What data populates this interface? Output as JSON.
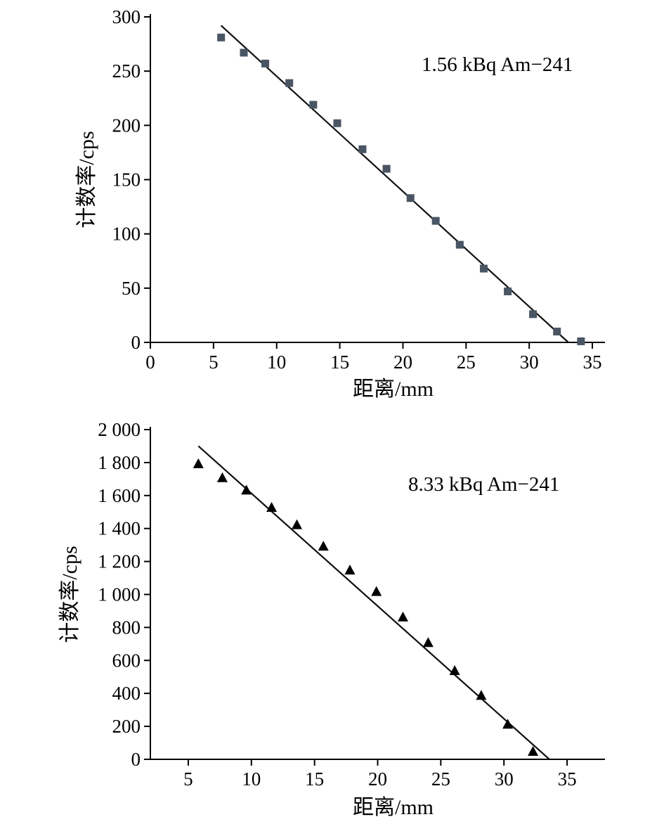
{
  "chart_data": [
    {
      "type": "scatter",
      "annotation": "1.56 kBq Am−241",
      "xlabel": "距离/mm",
      "ylabel": "计数率/cps",
      "xlim": [
        0,
        36
      ],
      "ylim": [
        0,
        300
      ],
      "xticks": [
        0,
        5,
        10,
        15,
        20,
        25,
        30,
        35
      ],
      "xtick_labels": [
        "0",
        "5",
        "10",
        "15",
        "20",
        "25",
        "30",
        "35"
      ],
      "yticks": [
        0,
        50,
        100,
        150,
        200,
        250,
        300
      ],
      "ytick_labels": [
        "0",
        "50",
        "100",
        "150",
        "200",
        "250",
        "300"
      ],
      "marker": "square",
      "marker_color": "#4a5563",
      "series": [
        {
          "x": [
            5.6,
            7.4,
            9.1,
            11.0,
            12.9,
            14.8,
            16.8,
            18.7,
            20.6,
            22.6,
            24.5,
            26.4,
            28.3,
            30.3,
            32.2,
            34.1
          ],
          "y": [
            281,
            267,
            257,
            239,
            219,
            202,
            178,
            160,
            133,
            112,
            90,
            68,
            47,
            26,
            10,
            1
          ]
        }
      ],
      "fit_line": {
        "x": [
          5.6,
          33.1
        ],
        "y": [
          292,
          0
        ]
      }
    },
    {
      "type": "scatter",
      "annotation": "8.33 kBq Am−241",
      "xlabel": "距离/mm",
      "ylabel": "计数率/cps",
      "xlim": [
        2,
        38
      ],
      "ylim": [
        0,
        2000
      ],
      "xticks": [
        5,
        10,
        15,
        20,
        25,
        30,
        35
      ],
      "xtick_labels": [
        "5",
        "10",
        "15",
        "20",
        "25",
        "30",
        "35"
      ],
      "yticks": [
        0,
        200,
        400,
        600,
        800,
        1000,
        1200,
        1400,
        1600,
        1800,
        2000
      ],
      "ytick_labels": [
        "0",
        "200",
        "400",
        "600",
        "800",
        "1 000",
        "1 200",
        "1 400",
        "1 600",
        "1 800",
        "2 000"
      ],
      "marker": "triangle",
      "marker_color": "#000000",
      "series": [
        {
          "x": [
            5.8,
            7.7,
            9.6,
            11.6,
            13.6,
            15.7,
            17.8,
            19.9,
            22.0,
            24.0,
            26.1,
            28.2,
            30.3,
            32.3
          ],
          "y": [
            1790,
            1705,
            1630,
            1525,
            1420,
            1290,
            1145,
            1015,
            860,
            705,
            535,
            385,
            210,
            45
          ]
        }
      ],
      "fit_line": {
        "x": [
          5.8,
          33.6
        ],
        "y": [
          1900,
          0
        ]
      }
    }
  ]
}
